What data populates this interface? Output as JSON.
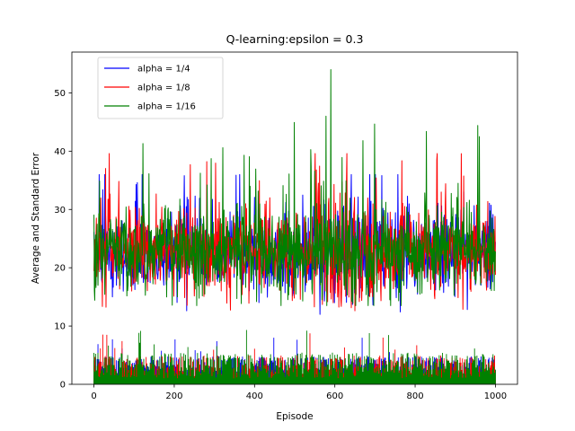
{
  "chart_data": {
    "type": "line",
    "title": "Q-learning:epsilon = 0.3",
    "xlabel": "Episode",
    "ylabel": "Average and Standard Error",
    "xlim": [
      -55,
      1055
    ],
    "ylim": [
      0,
      57
    ],
    "xticks": [
      0,
      200,
      400,
      600,
      800,
      1000
    ],
    "yticks": [
      0,
      10,
      20,
      30,
      40,
      50
    ],
    "grid": false,
    "legend_position": "top-left",
    "num_points": 1001,
    "series": [
      {
        "name": "alpha = 1/4",
        "color": "#0000ff",
        "mean_level": 22.5,
        "mean_spread": 4.3,
        "max_value": 36.0,
        "min_value": 11.5,
        "stderr_level": 3.0,
        "stderr_max": 8.0
      },
      {
        "name": "alpha = 1/8",
        "color": "#ff0000",
        "mean_level": 22.8,
        "mean_spread": 4.6,
        "max_value": 39.6,
        "min_value": 12.0,
        "stderr_level": 3.1,
        "stderr_max": 9.0
      },
      {
        "name": "alpha = 1/16",
        "color": "#008000",
        "mean_level": 23.0,
        "mean_spread": 5.0,
        "max_value": 54.0,
        "min_value": 13.5,
        "stderr_level": 3.4,
        "stderr_max": 10.5
      }
    ]
  }
}
